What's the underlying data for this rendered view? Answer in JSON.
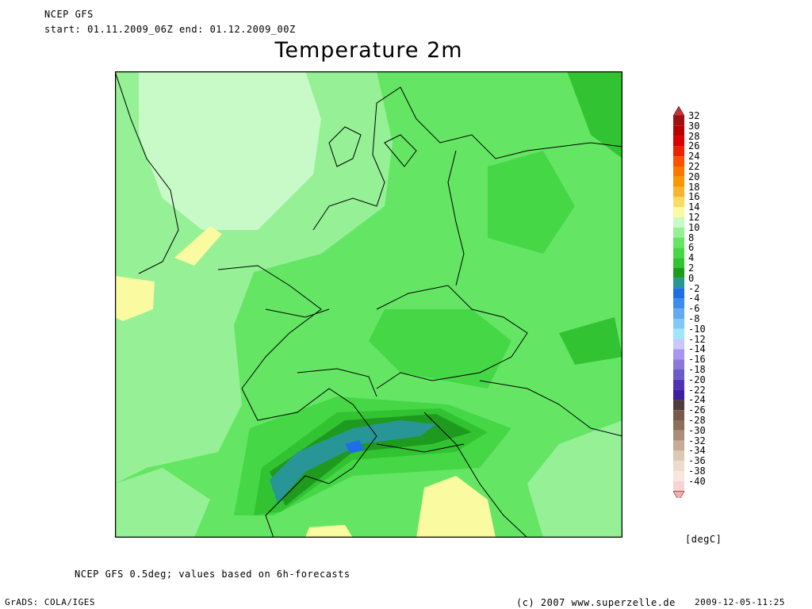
{
  "header": {
    "model": "NCEP GFS",
    "period": "start: 01.11.2009_06Z    end: 01.12.2009_00Z",
    "title": "Temperature 2m"
  },
  "footer": {
    "note": "NCEP GFS 0.5deg; values based on 6h-forecasts",
    "grads": "GrADS: COLA/IGES",
    "copyright": "(c) 2007 www.superzelle.de",
    "timestamp": "2009-12-05-11:25"
  },
  "colorbar": {
    "unit": "[degC]",
    "labels": [
      "32",
      "30",
      "28",
      "26",
      "24",
      "22",
      "20",
      "18",
      "16",
      "14",
      "12",
      "10",
      "8",
      "6",
      "4",
      "2",
      "0",
      "-2",
      "-4",
      "-6",
      "-8",
      "-10",
      "-12",
      "-14",
      "-16",
      "-18",
      "-20",
      "-22",
      "-24",
      "-26",
      "-28",
      "-30",
      "-32",
      "-34",
      "-36",
      "-38",
      "-40"
    ],
    "colors": [
      "#a01010",
      "#b80000",
      "#d80000",
      "#ee2000",
      "#fa5000",
      "#fa7800",
      "#fa9600",
      "#fab432",
      "#fadc64",
      "#fafaa0",
      "#c8fac8",
      "#96f096",
      "#64e664",
      "#46d746",
      "#32c332",
      "#1e9b1e",
      "#289696",
      "#1e6ee6",
      "#3c8cf0",
      "#64aaf0",
      "#82c8f8",
      "#a0e6fa",
      "#c8c8fa",
      "#aa96f0",
      "#8c78dc",
      "#6e5ac8",
      "#5032b4",
      "#3c1ea0",
      "#503c3c",
      "#785a4b",
      "#8c6e5a",
      "#aa8c78",
      "#c8aa96",
      "#dcc8b4",
      "#ebdccd",
      "#fae6dc",
      "#fad2d2"
    ],
    "top_arrow_color": "#c83232",
    "bottom_arrow_color": "#ffaaaa"
  },
  "map": {
    "colors": {
      "base": "#64e664",
      "light": "#96f096",
      "lighter": "#c8fac8",
      "warm": "#fafaa0",
      "mid": "#46d746",
      "dark": "#32c332",
      "darker": "#1e9b1e",
      "zero": "#289696",
      "cold": "#1e6ee6"
    }
  }
}
